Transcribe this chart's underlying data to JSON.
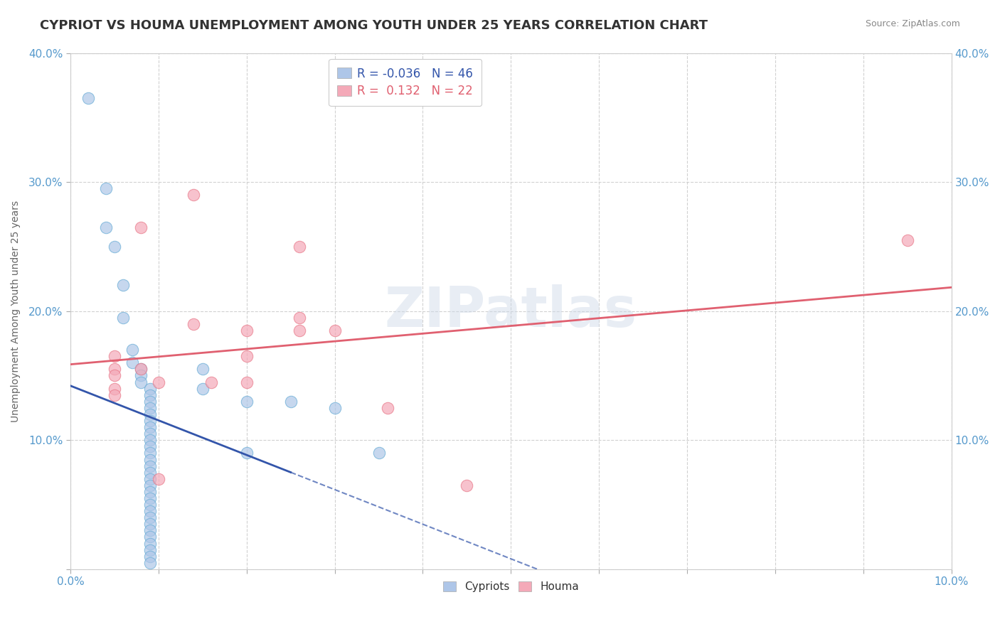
{
  "title": "CYPRIOT VS HOUMA UNEMPLOYMENT AMONG YOUTH UNDER 25 YEARS CORRELATION CHART",
  "source": "Source: ZipAtlas.com",
  "ylabel": "Unemployment Among Youth under 25 years",
  "watermark": "ZIPatlas",
  "cypriot_legend": "R = -0.036   N = 46",
  "houma_legend": "R =  0.132   N = 22",
  "xlim": [
    0.0,
    0.1
  ],
  "ylim": [
    0.0,
    0.4
  ],
  "xtick_vals": [
    0.0,
    0.01,
    0.02,
    0.03,
    0.04,
    0.05,
    0.06,
    0.07,
    0.08,
    0.09,
    0.1
  ],
  "ytick_vals": [
    0.0,
    0.1,
    0.2,
    0.3,
    0.4
  ],
  "xticklabels": [
    "0.0%",
    "",
    "",
    "",
    "",
    "",
    "",
    "",
    "",
    "",
    "10.0%"
  ],
  "yticklabels": [
    "",
    "10.0%",
    "20.0%",
    "30.0%",
    "40.0%"
  ],
  "grid_color": "#cccccc",
  "background_color": "#ffffff",
  "cypriot_color": "#aec6e8",
  "houma_color": "#f4a9b8",
  "cypriot_edge_color": "#6baed6",
  "houma_edge_color": "#e87a8a",
  "cypriot_line_color": "#3355aa",
  "houma_line_color": "#e06070",
  "title_color": "#333333",
  "title_fontsize": 13,
  "axis_label_color": "#666666",
  "tick_color": "#5599cc",
  "source_color": "#888888",
  "cypriot_points": [
    [
      0.002,
      0.365
    ],
    [
      0.004,
      0.295
    ],
    [
      0.004,
      0.265
    ],
    [
      0.005,
      0.25
    ],
    [
      0.006,
      0.22
    ],
    [
      0.006,
      0.195
    ],
    [
      0.007,
      0.17
    ],
    [
      0.007,
      0.16
    ],
    [
      0.008,
      0.155
    ],
    [
      0.008,
      0.15
    ],
    [
      0.008,
      0.145
    ],
    [
      0.009,
      0.14
    ],
    [
      0.009,
      0.135
    ],
    [
      0.009,
      0.13
    ],
    [
      0.009,
      0.125
    ],
    [
      0.009,
      0.12
    ],
    [
      0.009,
      0.115
    ],
    [
      0.009,
      0.11
    ],
    [
      0.009,
      0.105
    ],
    [
      0.009,
      0.1
    ],
    [
      0.009,
      0.095
    ],
    [
      0.009,
      0.09
    ],
    [
      0.009,
      0.085
    ],
    [
      0.009,
      0.08
    ],
    [
      0.009,
      0.075
    ],
    [
      0.009,
      0.07
    ],
    [
      0.009,
      0.065
    ],
    [
      0.009,
      0.06
    ],
    [
      0.009,
      0.055
    ],
    [
      0.009,
      0.05
    ],
    [
      0.009,
      0.045
    ],
    [
      0.009,
      0.04
    ],
    [
      0.009,
      0.035
    ],
    [
      0.009,
      0.03
    ],
    [
      0.009,
      0.025
    ],
    [
      0.009,
      0.02
    ],
    [
      0.009,
      0.015
    ],
    [
      0.009,
      0.01
    ],
    [
      0.009,
      0.005
    ],
    [
      0.015,
      0.155
    ],
    [
      0.015,
      0.14
    ],
    [
      0.02,
      0.13
    ],
    [
      0.02,
      0.09
    ],
    [
      0.025,
      0.13
    ],
    [
      0.03,
      0.125
    ],
    [
      0.035,
      0.09
    ]
  ],
  "houma_points": [
    [
      0.005,
      0.165
    ],
    [
      0.005,
      0.155
    ],
    [
      0.005,
      0.15
    ],
    [
      0.005,
      0.14
    ],
    [
      0.005,
      0.135
    ],
    [
      0.008,
      0.265
    ],
    [
      0.008,
      0.155
    ],
    [
      0.01,
      0.145
    ],
    [
      0.01,
      0.07
    ],
    [
      0.014,
      0.29
    ],
    [
      0.014,
      0.19
    ],
    [
      0.016,
      0.145
    ],
    [
      0.02,
      0.185
    ],
    [
      0.02,
      0.165
    ],
    [
      0.02,
      0.145
    ],
    [
      0.026,
      0.185
    ],
    [
      0.026,
      0.25
    ],
    [
      0.026,
      0.195
    ],
    [
      0.03,
      0.185
    ],
    [
      0.036,
      0.125
    ],
    [
      0.045,
      0.065
    ],
    [
      0.095,
      0.255
    ]
  ]
}
